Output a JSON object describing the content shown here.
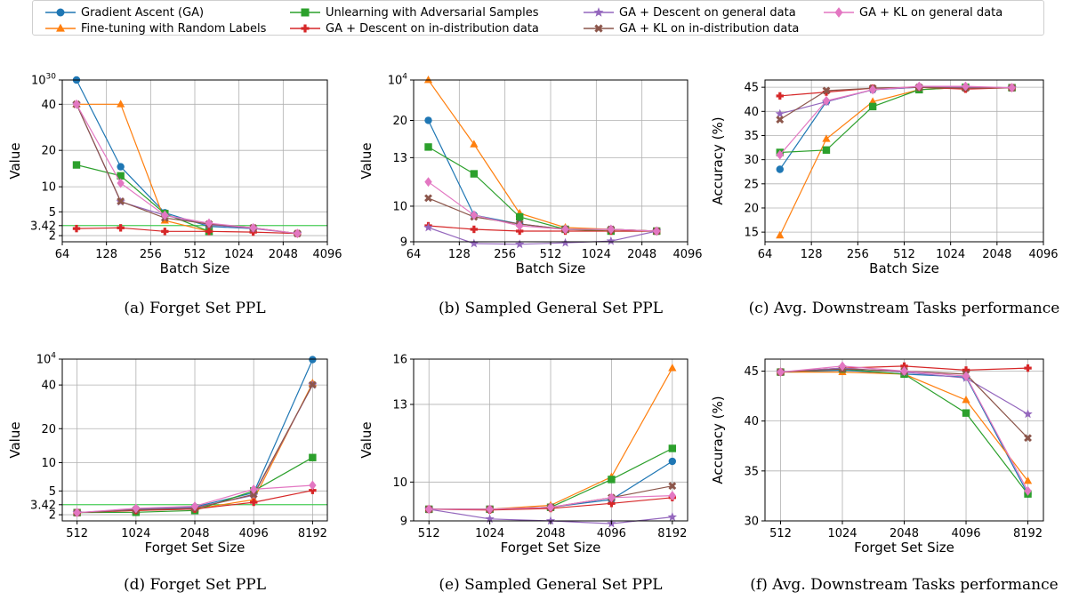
{
  "series_styles": [
    {
      "name": "Gradient Ascent (GA)",
      "color": "#1f77b4",
      "marker": "circle"
    },
    {
      "name": "Fine-tuning with Random Labels",
      "color": "#ff7f0e",
      "marker": "triangle"
    },
    {
      "name": "Unlearning with Adversarial Samples",
      "color": "#2ca02c",
      "marker": "square"
    },
    {
      "name": "GA + Descent on in-distribution data",
      "color": "#d62728",
      "marker": "plus"
    },
    {
      "name": "GA + Descent on general data",
      "color": "#9467bd",
      "marker": "star"
    },
    {
      "name": "GA + KL on in-distribution data",
      "color": "#8c564b",
      "marker": "x"
    },
    {
      "name": "GA + KL on general data",
      "color": "#e377c2",
      "marker": "diamond"
    }
  ],
  "reference_line_color": "#2ecc40",
  "chart_data": [
    {
      "type": "line",
      "caption": "(a) Forget Set PPL",
      "xlabel": "Batch Size",
      "ylabel": "Value",
      "grid": true,
      "xscale": "log2",
      "xticks": [
        64,
        128,
        256,
        512,
        1024,
        2048,
        4096
      ],
      "xtick_labels": [
        "64",
        "128",
        "256",
        "512",
        "1024",
        "2048",
        "4096"
      ],
      "xlim": [
        64,
        4096
      ],
      "yticks": [
        2,
        3.42,
        5,
        10,
        20,
        40,
        1e+30
      ],
      "ytick_labels": [
        "2",
        "3.42",
        "5",
        "10",
        "20",
        "40",
        "10^30"
      ],
      "hline": 3.42,
      "x": [
        80,
        160,
        320,
        640,
        1280,
        2560
      ],
      "series": [
        {
          "name": "Gradient Ascent (GA)",
          "values": [
            1e+30,
            15.5,
            4.9,
            3.3,
            3.0,
            null
          ]
        },
        {
          "name": "Fine-tuning with Random Labels",
          "values": [
            42,
            40,
            4.0,
            2.6,
            null,
            null
          ]
        },
        {
          "name": "Unlearning with Adversarial Samples",
          "values": [
            16,
            13,
            4.8,
            2.6,
            null,
            null
          ]
        },
        {
          "name": "GA + Descent on in-distribution data",
          "values": [
            3.0,
            3.1,
            2.6,
            2.6,
            2.5,
            2.3
          ]
        },
        {
          "name": "GA + Descent on general data",
          "values": [
            40,
            7.0,
            4.6,
            3.5,
            3.0,
            2.3
          ]
        },
        {
          "name": "GA + KL on in-distribution data",
          "values": [
            40,
            7.1,
            4.3,
            3.6,
            3.1,
            2.3
          ]
        },
        {
          "name": "GA + KL on general data",
          "values": [
            42,
            11,
            4.6,
            3.7,
            3.1,
            2.3
          ]
        }
      ],
      "xticks_override": [
        80,
        160,
        320,
        640,
        1280,
        2560
      ]
    },
    {
      "type": "line",
      "caption": "(b) Sampled General Set PPL",
      "xlabel": "Batch Size",
      "ylabel": "Value",
      "grid": true,
      "xscale": "log2",
      "xticks": [
        64,
        128,
        256,
        512,
        1024,
        2048,
        4096
      ],
      "xtick_labels": [
        "64",
        "128",
        "256",
        "512",
        "1024",
        "2048",
        "4096"
      ],
      "xlim": [
        64,
        4096
      ],
      "yticks": [
        9,
        10,
        13,
        20,
        10000
      ],
      "ytick_labels": [
        "9",
        "10",
        "13",
        "20",
        "10^4"
      ],
      "x": [
        80,
        160,
        320,
        640,
        1280,
        2560
      ],
      "series": [
        {
          "name": "Gradient Ascent (GA)",
          "values": [
            20.3,
            9.75,
            9.5,
            9.35,
            9.35,
            9.3
          ]
        },
        {
          "name": "Fine-tuning with Random Labels",
          "values": [
            10000,
            15.5,
            9.8,
            9.4,
            9.35,
            9.3
          ]
        },
        {
          "name": "Unlearning with Adversarial Samples",
          "values": [
            15.0,
            12.0,
            9.7,
            9.35,
            9.3,
            9.3
          ]
        },
        {
          "name": "GA + Descent on in-distribution data",
          "values": [
            9.45,
            9.35,
            9.3,
            9.3,
            9.3,
            9.3
          ]
        },
        {
          "name": "GA + Descent on general data",
          "values": [
            9.4,
            8.95,
            8.93,
            8.97,
            9.02,
            9.3
          ]
        },
        {
          "name": "GA + KL on in-distribution data",
          "values": [
            10.5,
            9.7,
            9.5,
            9.35,
            9.35,
            9.3
          ]
        },
        {
          "name": "GA + KL on general data",
          "values": [
            11.5,
            9.75,
            9.45,
            9.35,
            9.35,
            9.3
          ]
        }
      ]
    },
    {
      "type": "line",
      "caption": "(c) Avg. Downstream Tasks performance",
      "xlabel": "Batch Size",
      "ylabel": "Accuracy (%)",
      "grid": true,
      "xscale": "log2",
      "xticks": [
        64,
        128,
        256,
        512,
        1024,
        2048,
        4096
      ],
      "xtick_labels": [
        "64",
        "128",
        "256",
        "512",
        "1024",
        "2048",
        "4096"
      ],
      "xlim": [
        64,
        4096
      ],
      "ylim": [
        13,
        46.5
      ],
      "yticks": [
        15,
        20,
        25,
        30,
        35,
        40,
        45
      ],
      "ytick_labels": [
        "15",
        "20",
        "25",
        "30",
        "35",
        "40",
        "45"
      ],
      "x": [
        80,
        160,
        320,
        640,
        1280,
        2560
      ],
      "series": [
        {
          "name": "Gradient Ascent (GA)",
          "values": [
            28.0,
            42.0,
            44.5,
            45.0,
            45.0,
            44.9
          ]
        },
        {
          "name": "Fine-tuning with Random Labels",
          "values": [
            14.3,
            34.3,
            42.0,
            44.5,
            45.0,
            44.9
          ]
        },
        {
          "name": "Unlearning with Adversarial Samples",
          "values": [
            31.5,
            32.0,
            41.0,
            44.5,
            45.0,
            44.9
          ]
        },
        {
          "name": "GA + Descent on in-distribution data",
          "values": [
            43.2,
            44.0,
            44.8,
            45.0,
            44.6,
            44.9
          ]
        },
        {
          "name": "GA + Descent on general data",
          "values": [
            39.5,
            42.0,
            44.5,
            45.0,
            45.0,
            44.9
          ]
        },
        {
          "name": "GA + KL on in-distribution data",
          "values": [
            38.3,
            44.3,
            44.8,
            45.0,
            44.8,
            44.9
          ]
        },
        {
          "name": "GA + KL on general data",
          "values": [
            31.0,
            42.2,
            44.5,
            45.2,
            45.2,
            44.9
          ]
        }
      ]
    },
    {
      "type": "line",
      "caption": "(d) Forget Set PPL",
      "xlabel": "Forget Set Size",
      "ylabel": "Value",
      "grid": true,
      "xscale": "log2",
      "xticks": [
        512,
        1024,
        2048,
        4096,
        8192
      ],
      "xtick_labels": [
        "512",
        "1024",
        "2048",
        "4096",
        "8192"
      ],
      "xlim": [
        430,
        9750
      ],
      "yticks": [
        2,
        3.42,
        5,
        10,
        20,
        40,
        10000
      ],
      "ytick_labels": [
        "2",
        "3.42",
        "5",
        "10",
        "20",
        "40",
        "10^4"
      ],
      "hline": 3.42,
      "x": [
        512,
        1024,
        2048,
        4096,
        8192
      ],
      "series": [
        {
          "name": "Gradient Ascent (GA)",
          "values": [
            2.3,
            2.8,
            3.1,
            4.8,
            9000
          ]
        },
        {
          "name": "Fine-tuning with Random Labels",
          "values": [
            2.3,
            2.6,
            2.8,
            4.0,
            60
          ]
        },
        {
          "name": "Unlearning with Adversarial Samples",
          "values": [
            2.3,
            2.35,
            2.6,
            5.0,
            11.5
          ]
        },
        {
          "name": "GA + Descent on in-distribution data",
          "values": [
            2.3,
            2.6,
            2.8,
            3.7,
            5.1
          ]
        },
        {
          "name": "GA + Descent on general data",
          "values": [
            2.3,
            2.7,
            3.0,
            4.5,
            40
          ]
        },
        {
          "name": "GA + KL on in-distribution data",
          "values": [
            2.3,
            2.7,
            2.9,
            4.6,
            42
          ]
        },
        {
          "name": "GA + KL on general data",
          "values": [
            2.3,
            2.9,
            3.2,
            5.3,
            6.0
          ]
        }
      ]
    },
    {
      "type": "line",
      "caption": "(e) Sampled General Set PPL",
      "xlabel": "Forget Set Size",
      "ylabel": "Value",
      "grid": true,
      "xscale": "log2",
      "xticks": [
        512,
        1024,
        2048,
        4096,
        8192
      ],
      "xtick_labels": [
        "512",
        "1024",
        "2048",
        "4096",
        "8192"
      ],
      "xlim": [
        430,
        9750
      ],
      "yticks": [
        9,
        10,
        13,
        16
      ],
      "ytick_labels": [
        "9",
        "10",
        "13",
        "16"
      ],
      "x": [
        512,
        1024,
        2048,
        4096,
        8192
      ],
      "series": [
        {
          "name": "Gradient Ascent (GA)",
          "values": [
            9.3,
            9.3,
            9.35,
            9.55,
            10.8
          ]
        },
        {
          "name": "Fine-tuning with Random Labels",
          "values": [
            9.3,
            9.3,
            9.4,
            10.2,
            15.4
          ]
        },
        {
          "name": "Unlearning with Adversarial Samples",
          "values": [
            9.3,
            9.3,
            9.35,
            10.1,
            11.3
          ]
        },
        {
          "name": "GA + Descent on in-distribution data",
          "values": [
            9.3,
            9.28,
            9.32,
            9.45,
            9.6
          ]
        },
        {
          "name": "GA + Descent on general data",
          "values": [
            9.3,
            9.05,
            9.0,
            8.93,
            9.1
          ]
        },
        {
          "name": "GA + KL on in-distribution data",
          "values": [
            9.3,
            9.3,
            9.35,
            9.6,
            9.9
          ]
        },
        {
          "name": "GA + KL on general data",
          "values": [
            9.3,
            9.3,
            9.35,
            9.6,
            9.65
          ]
        }
      ]
    },
    {
      "type": "line",
      "caption": "(f) Avg. Downstream Tasks performance",
      "xlabel": "Forget Set Size",
      "ylabel": "Accuracy (%)",
      "grid": true,
      "xscale": "log2",
      "xticks": [
        512,
        1024,
        2048,
        4096,
        8192
      ],
      "xtick_labels": [
        "512",
        "1024",
        "2048",
        "4096",
        "8192"
      ],
      "xlim": [
        430,
        9750
      ],
      "ylim": [
        30,
        46.2
      ],
      "yticks": [
        30,
        35,
        40,
        45
      ],
      "ytick_labels": [
        "30",
        "35",
        "40",
        "45"
      ],
      "x": [
        512,
        1024,
        2048,
        4096,
        8192
      ],
      "series": [
        {
          "name": "Gradient Ascent (GA)",
          "values": [
            44.9,
            45.1,
            44.7,
            44.4,
            32.7
          ]
        },
        {
          "name": "Fine-tuning with Random Labels",
          "values": [
            44.9,
            44.9,
            44.7,
            42.1,
            34.0
          ]
        },
        {
          "name": "Unlearning with Adversarial Samples",
          "values": [
            44.9,
            45.2,
            44.7,
            40.8,
            32.7
          ]
        },
        {
          "name": "GA + Descent on in-distribution data",
          "values": [
            44.9,
            45.3,
            45.5,
            45.1,
            45.3
          ]
        },
        {
          "name": "GA + Descent on general data",
          "values": [
            44.9,
            45.3,
            44.9,
            44.3,
            40.7
          ]
        },
        {
          "name": "GA + KL on in-distribution data",
          "values": [
            44.9,
            45.2,
            45.0,
            44.7,
            38.3
          ]
        },
        {
          "name": "GA + KL on general data",
          "values": [
            44.9,
            45.5,
            45.0,
            44.5,
            33.0
          ]
        }
      ]
    }
  ]
}
